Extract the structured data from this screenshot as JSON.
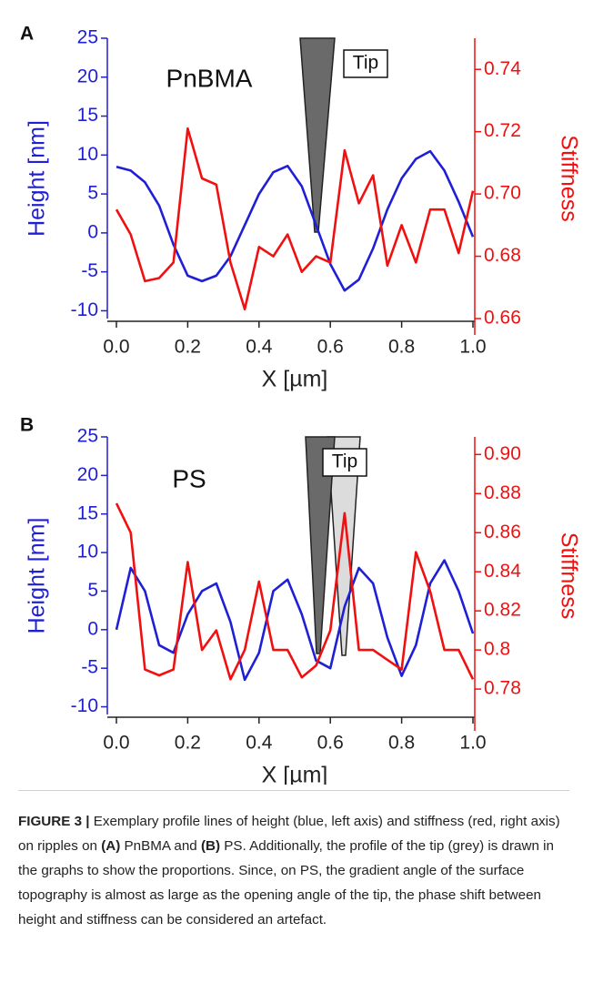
{
  "chart_data": [
    {
      "type": "line",
      "panel": "A",
      "annotation": "PnBMA",
      "tip_label": "Tip",
      "xlabel": "X [µm]",
      "ylabel": "Height [nm]",
      "y2label": "Stiffness",
      "x": [
        0,
        0.04,
        0.08,
        0.12,
        0.16,
        0.2,
        0.24,
        0.28,
        0.32,
        0.36,
        0.4,
        0.44,
        0.48,
        0.52,
        0.56,
        0.6,
        0.64,
        0.68,
        0.72,
        0.76,
        0.8,
        0.84,
        0.88,
        0.92,
        0.96,
        1.0
      ],
      "series": [
        {
          "color": "#1f1fd6",
          "values": [
            8.5,
            8.0,
            6.5,
            3.5,
            -1.5,
            -5.5,
            -6.2,
            -5.5,
            -3,
            1,
            5,
            7.8,
            8.6,
            6,
            1,
            -4,
            -7.4,
            -6,
            -2,
            3,
            7,
            9.5,
            10.5,
            8,
            4,
            -0.5
          ]
        },
        {
          "color": "#f01010",
          "axis": "y2",
          "values": [
            0.695,
            0.687,
            0.672,
            0.673,
            0.678,
            0.721,
            0.705,
            0.703,
            0.678,
            0.663,
            0.683,
            0.68,
            0.687,
            0.675,
            0.68,
            0.678,
            0.714,
            0.697,
            0.706,
            0.677,
            0.69,
            0.678,
            0.695,
            0.695,
            0.681,
            0.701
          ]
        }
      ],
      "xlim": [
        0,
        1
      ],
      "xticks": [
        {
          "value": 0,
          "label": "0.0"
        },
        0.2,
        0.4,
        0.6,
        0.8,
        {
          "value": 1,
          "label": "1.0"
        }
      ],
      "ylim": [
        -11,
        25
      ],
      "yticks": [
        -10,
        -5,
        0,
        5,
        10,
        15,
        20,
        25
      ],
      "y2lim": [
        0.66,
        0.75
      ],
      "y2ticks": [
        0.66,
        0.68,
        {
          "value": 0.7,
          "label": "0.70"
        },
        0.72,
        0.74
      ]
    },
    {
      "type": "line",
      "panel": "B",
      "annotation": "PS",
      "tip_label": "Tip",
      "xlabel": "X [µm]",
      "ylabel": "Height [nm]",
      "y2label": "Stiffness",
      "x": [
        0,
        0.04,
        0.08,
        0.12,
        0.16,
        0.2,
        0.24,
        0.28,
        0.32,
        0.36,
        0.4,
        0.44,
        0.48,
        0.52,
        0.56,
        0.6,
        0.64,
        0.68,
        0.72,
        0.76,
        0.8,
        0.84,
        0.88,
        0.92,
        0.96,
        1.0
      ],
      "series": [
        {
          "color": "#1f1fd6",
          "values": [
            0,
            8,
            5,
            -2,
            -3,
            2,
            5,
            6,
            1,
            -6.5,
            -3,
            5,
            6.5,
            2,
            -4,
            -5,
            3,
            8,
            6,
            -1,
            -6,
            -2,
            6,
            9,
            5,
            -0.5
          ]
        },
        {
          "color": "#f01010",
          "axis": "y2",
          "values": [
            0.875,
            0.86,
            0.79,
            0.787,
            0.79,
            0.845,
            0.8,
            0.81,
            0.785,
            0.8,
            0.835,
            0.8,
            0.8,
            0.786,
            0.792,
            0.81,
            0.87,
            0.8,
            0.8,
            0.795,
            0.79,
            0.85,
            0.83,
            0.8,
            0.8,
            0.785
          ]
        }
      ],
      "xlim": [
        0,
        1
      ],
      "xticks": [
        {
          "value": 0,
          "label": "0.0"
        },
        0.2,
        0.4,
        0.6,
        0.8,
        {
          "value": 1,
          "label": "1.0"
        }
      ],
      "ylim": [
        -11,
        25
      ],
      "yticks": [
        -10,
        -5,
        0,
        5,
        10,
        15,
        20,
        25
      ],
      "y2lim": [
        0.767,
        0.909
      ],
      "y2ticks": [
        0.78,
        0.8,
        0.82,
        0.84,
        0.86,
        0.88,
        {
          "value": 0.9,
          "label": "0.90"
        }
      ]
    }
  ],
  "caption": {
    "label": "FIGURE 3 |",
    "parts": [
      " Exemplary profile lines of height (blue, left axis) and stiffness (red, right axis) on ripples on ",
      "(A)",
      " PnBMA and ",
      "(B)",
      " PS. Additionally, the profile of the tip (grey) is drawn in the graphs to show the proportions. Since, on PS, the gradient angle of the surface topography is almost as large as the opening angle of the tip, the phase shift between height and stiffness can be considered an artefact."
    ]
  }
}
